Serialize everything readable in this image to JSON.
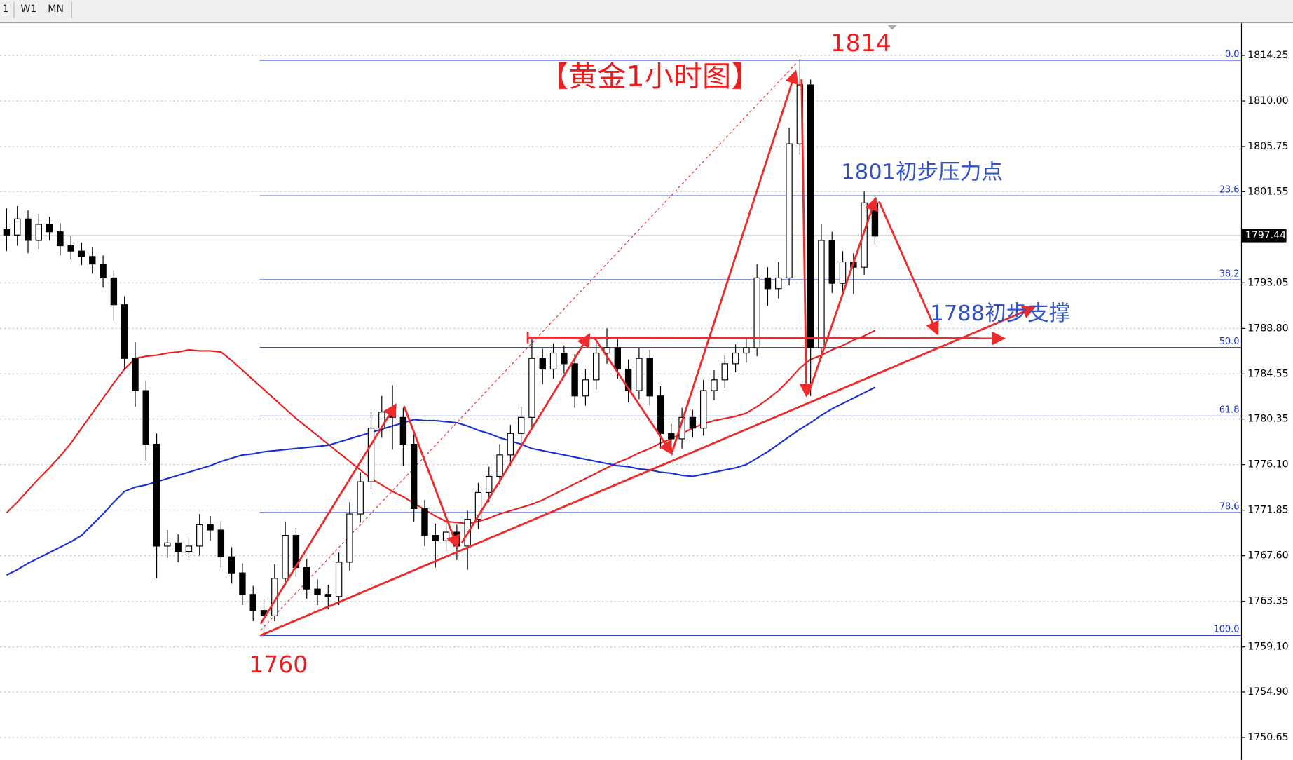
{
  "toolbar": {
    "buttons": [
      "1",
      "W1",
      "MN"
    ]
  },
  "chart_data": {
    "type": "candlestick",
    "title": "【黄金1小时图】",
    "annotations": [
      "1814",
      "1801初步压力点",
      "1788初步支撑",
      "1760"
    ],
    "open": [
      1798.0,
      1797.5,
      1799.0,
      1797.0,
      1798.5,
      1797.8,
      1796.5,
      1796.0,
      1795.5,
      1794.8,
      1793.5,
      1791.0,
      1786.0,
      1783.0,
      1778.0,
      1768.5,
      1768.8,
      1768.0,
      1768.5,
      1770.5,
      1770.0,
      1767.5,
      1766.0,
      1764.0,
      1762.5,
      1762.0,
      1765.5,
      1769.5,
      1766.5,
      1764.5,
      1764.0,
      1763.8,
      1767.0,
      1771.5,
      1774.5,
      1779.5,
      1781.0,
      1780.5,
      1778.0,
      1772.0,
      1769.5,
      1769.0,
      1769.8,
      1768.5,
      1771.0,
      1773.5,
      1775.0,
      1777.0,
      1779.0,
      1780.5,
      1786.0,
      1785.0,
      1786.5,
      1785.5,
      1782.5,
      1784.0,
      1786.5,
      1787.0,
      1785.0,
      1783.0,
      1786.0,
      1782.5,
      1779.0,
      1778.5,
      1780.5,
      1779.5,
      1783.0,
      1784.0,
      1785.5,
      1786.5,
      1787.0,
      1793.5,
      1792.5,
      1793.5,
      1806.0,
      1811.5,
      1787.0,
      1797.0,
      1793.0,
      1795.0,
      1794.5,
      1800.5
    ],
    "high": [
      1800.0,
      1800.2,
      1799.8,
      1799.5,
      1799.2,
      1798.6,
      1797.4,
      1796.8,
      1796.4,
      1795.6,
      1794.2,
      1791.8,
      1787.5,
      1783.9,
      1779.0,
      1770.0,
      1769.6,
      1769.3,
      1771.5,
      1771.3,
      1770.8,
      1768.4,
      1766.9,
      1764.8,
      1763.6,
      1766.8,
      1770.8,
      1770.2,
      1767.3,
      1765.4,
      1764.9,
      1767.9,
      1772.6,
      1775.4,
      1781.0,
      1782.5,
      1783.5,
      1781.4,
      1778.9,
      1772.8,
      1770.6,
      1770.7,
      1770.5,
      1771.8,
      1774.4,
      1775.9,
      1778.0,
      1779.8,
      1781.5,
      1787.8,
      1786.9,
      1787.4,
      1787.2,
      1786.4,
      1785.0,
      1787.4,
      1788.8,
      1787.8,
      1785.9,
      1787.0,
      1786.8,
      1783.4,
      1779.9,
      1781.4,
      1781.2,
      1784.0,
      1784.9,
      1786.3,
      1787.3,
      1787.9,
      1794.8,
      1794.5,
      1795.0,
      1807.5,
      1813.9,
      1812.0,
      1798.5,
      1797.8,
      1796.0,
      1795.8,
      1801.6,
      1801.2
    ],
    "low": [
      1796.0,
      1796.5,
      1795.8,
      1796.2,
      1797.0,
      1795.6,
      1795.2,
      1794.7,
      1793.9,
      1792.6,
      1789.5,
      1785.0,
      1781.5,
      1776.5,
      1765.5,
      1767.4,
      1767.0,
      1767.2,
      1767.6,
      1769.0,
      1766.5,
      1765.0,
      1763.0,
      1761.5,
      1760.4,
      1761.5,
      1764.8,
      1765.6,
      1763.6,
      1763.0,
      1762.6,
      1763.0,
      1766.2,
      1770.7,
      1773.8,
      1778.6,
      1777.5,
      1776.0,
      1770.8,
      1768.5,
      1766.5,
      1768.0,
      1767.2,
      1766.3,
      1770.1,
      1772.6,
      1774.2,
      1776.0,
      1778.1,
      1779.6,
      1783.6,
      1784.1,
      1784.6,
      1781.4,
      1781.6,
      1783.1,
      1785.5,
      1784.1,
      1781.9,
      1782.2,
      1781.6,
      1777.6,
      1776.9,
      1777.6,
      1778.6,
      1778.8,
      1782.1,
      1783.2,
      1784.7,
      1785.6,
      1786.2,
      1790.9,
      1791.6,
      1792.8,
      1805.0,
      1782.5,
      1786.0,
      1792.1,
      1792.2,
      1792.0,
      1793.8,
      1796.6
    ],
    "close": [
      1797.5,
      1799.0,
      1797.0,
      1798.5,
      1797.8,
      1796.5,
      1796.0,
      1795.5,
      1794.8,
      1793.5,
      1791.0,
      1786.0,
      1783.0,
      1778.0,
      1768.5,
      1768.8,
      1768.0,
      1768.5,
      1770.5,
      1770.0,
      1767.5,
      1766.0,
      1764.0,
      1762.5,
      1762.0,
      1765.5,
      1769.5,
      1766.5,
      1764.5,
      1764.0,
      1763.8,
      1767.0,
      1771.5,
      1774.5,
      1779.5,
      1781.0,
      1780.5,
      1778.0,
      1772.0,
      1769.5,
      1769.0,
      1769.8,
      1768.5,
      1771.0,
      1773.5,
      1775.0,
      1777.0,
      1779.0,
      1780.5,
      1786.0,
      1785.0,
      1786.5,
      1785.5,
      1782.5,
      1784.0,
      1786.5,
      1787.0,
      1785.0,
      1783.0,
      1786.0,
      1782.5,
      1779.0,
      1778.5,
      1780.5,
      1779.5,
      1783.0,
      1784.0,
      1785.5,
      1786.5,
      1787.0,
      1793.5,
      1792.5,
      1793.5,
      1806.0,
      1811.5,
      1787.0,
      1797.0,
      1793.0,
      1795.0,
      1794.5,
      1800.5,
      1797.4
    ],
    "overlays": [
      {
        "color": "#ee1c1c",
        "values": [
          1771.6,
          1772.6,
          1773.7,
          1774.8,
          1775.8,
          1776.9,
          1778.1,
          1779.5,
          1780.9,
          1782.3,
          1783.7,
          1785.0,
          1786.0,
          1786.2,
          1786.3,
          1786.5,
          1786.6,
          1786.8,
          1786.7,
          1786.7,
          1786.6,
          1785.8,
          1784.9,
          1784.0,
          1783.1,
          1782.2,
          1781.3,
          1780.4,
          1779.6,
          1778.8,
          1778.0,
          1777.2,
          1776.4,
          1775.6,
          1774.8,
          1774.2,
          1773.6,
          1773.1,
          1772.5,
          1771.9,
          1771.3,
          1770.8,
          1770.7,
          1770.6,
          1770.8,
          1771.1,
          1771.5,
          1771.8,
          1772.1,
          1772.4,
          1772.8,
          1773.3,
          1773.8,
          1774.3,
          1774.8,
          1775.3,
          1775.8,
          1776.3,
          1776.7,
          1777.2,
          1777.6,
          1778.1,
          1778.5,
          1779.0,
          1779.5,
          1779.9,
          1780.2,
          1780.4,
          1780.6,
          1780.9,
          1781.5,
          1782.2,
          1783.0,
          1784.0,
          1785.1,
          1785.9,
          1786.3,
          1786.8,
          1787.2,
          1787.7,
          1788.1,
          1788.6
        ]
      },
      {
        "color": "#1a2fd6",
        "values": [
          1765.8,
          1766.3,
          1766.9,
          1767.4,
          1767.9,
          1768.4,
          1768.9,
          1769.5,
          1770.5,
          1771.5,
          1772.6,
          1773.6,
          1774.0,
          1774.2,
          1774.5,
          1774.8,
          1775.1,
          1775.4,
          1775.7,
          1776.0,
          1776.4,
          1776.7,
          1777.0,
          1777.1,
          1777.3,
          1777.4,
          1777.5,
          1777.6,
          1777.7,
          1777.8,
          1777.9,
          1778.2,
          1778.5,
          1778.8,
          1779.1,
          1779.4,
          1779.7,
          1780.0,
          1780.3,
          1780.2,
          1780.2,
          1780.1,
          1780.0,
          1779.7,
          1779.3,
          1779.0,
          1778.6,
          1778.3,
          1778.0,
          1777.6,
          1777.4,
          1777.2,
          1777.0,
          1776.8,
          1776.6,
          1776.4,
          1776.2,
          1776.0,
          1775.9,
          1775.7,
          1775.6,
          1775.4,
          1775.3,
          1775.1,
          1775.0,
          1775.2,
          1775.4,
          1775.6,
          1775.8,
          1776.1,
          1776.7,
          1777.3,
          1778.0,
          1778.7,
          1779.4,
          1780.0,
          1780.7,
          1781.3,
          1781.8,
          1782.3,
          1782.8,
          1783.3
        ]
      }
    ],
    "fib_levels": [
      {
        "label": "0.0",
        "price": 1813.79
      },
      {
        "label": "23.6",
        "price": 1801.17
      },
      {
        "label": "38.2",
        "price": 1793.33
      },
      {
        "label": "50.0",
        "price": 1787.02
      },
      {
        "label": "61.8",
        "price": 1780.63
      },
      {
        "label": "78.6",
        "price": 1771.63
      },
      {
        "label": "100.0",
        "price": 1760.17
      }
    ],
    "current_price": 1797.44,
    "ylim": [
      1748.57,
      1817.25
    ],
    "yticks": [
      1814.25,
      {
        "value": 1810,
        "label": "1810.00"
      },
      1805.75,
      1801.55,
      1793.05,
      {
        "value": 1788.8,
        "label": "1788.80"
      },
      1784.55,
      1780.35,
      {
        "value": 1776.1,
        "label": "1776.10"
      },
      1771.85,
      {
        "value": 1767.6,
        "label": "1767.60"
      },
      1763.35,
      {
        "value": 1759.1,
        "label": "1759.10"
      },
      {
        "value": 1754.9,
        "label": "1754.90"
      },
      1750.65
    ],
    "grid": true
  }
}
